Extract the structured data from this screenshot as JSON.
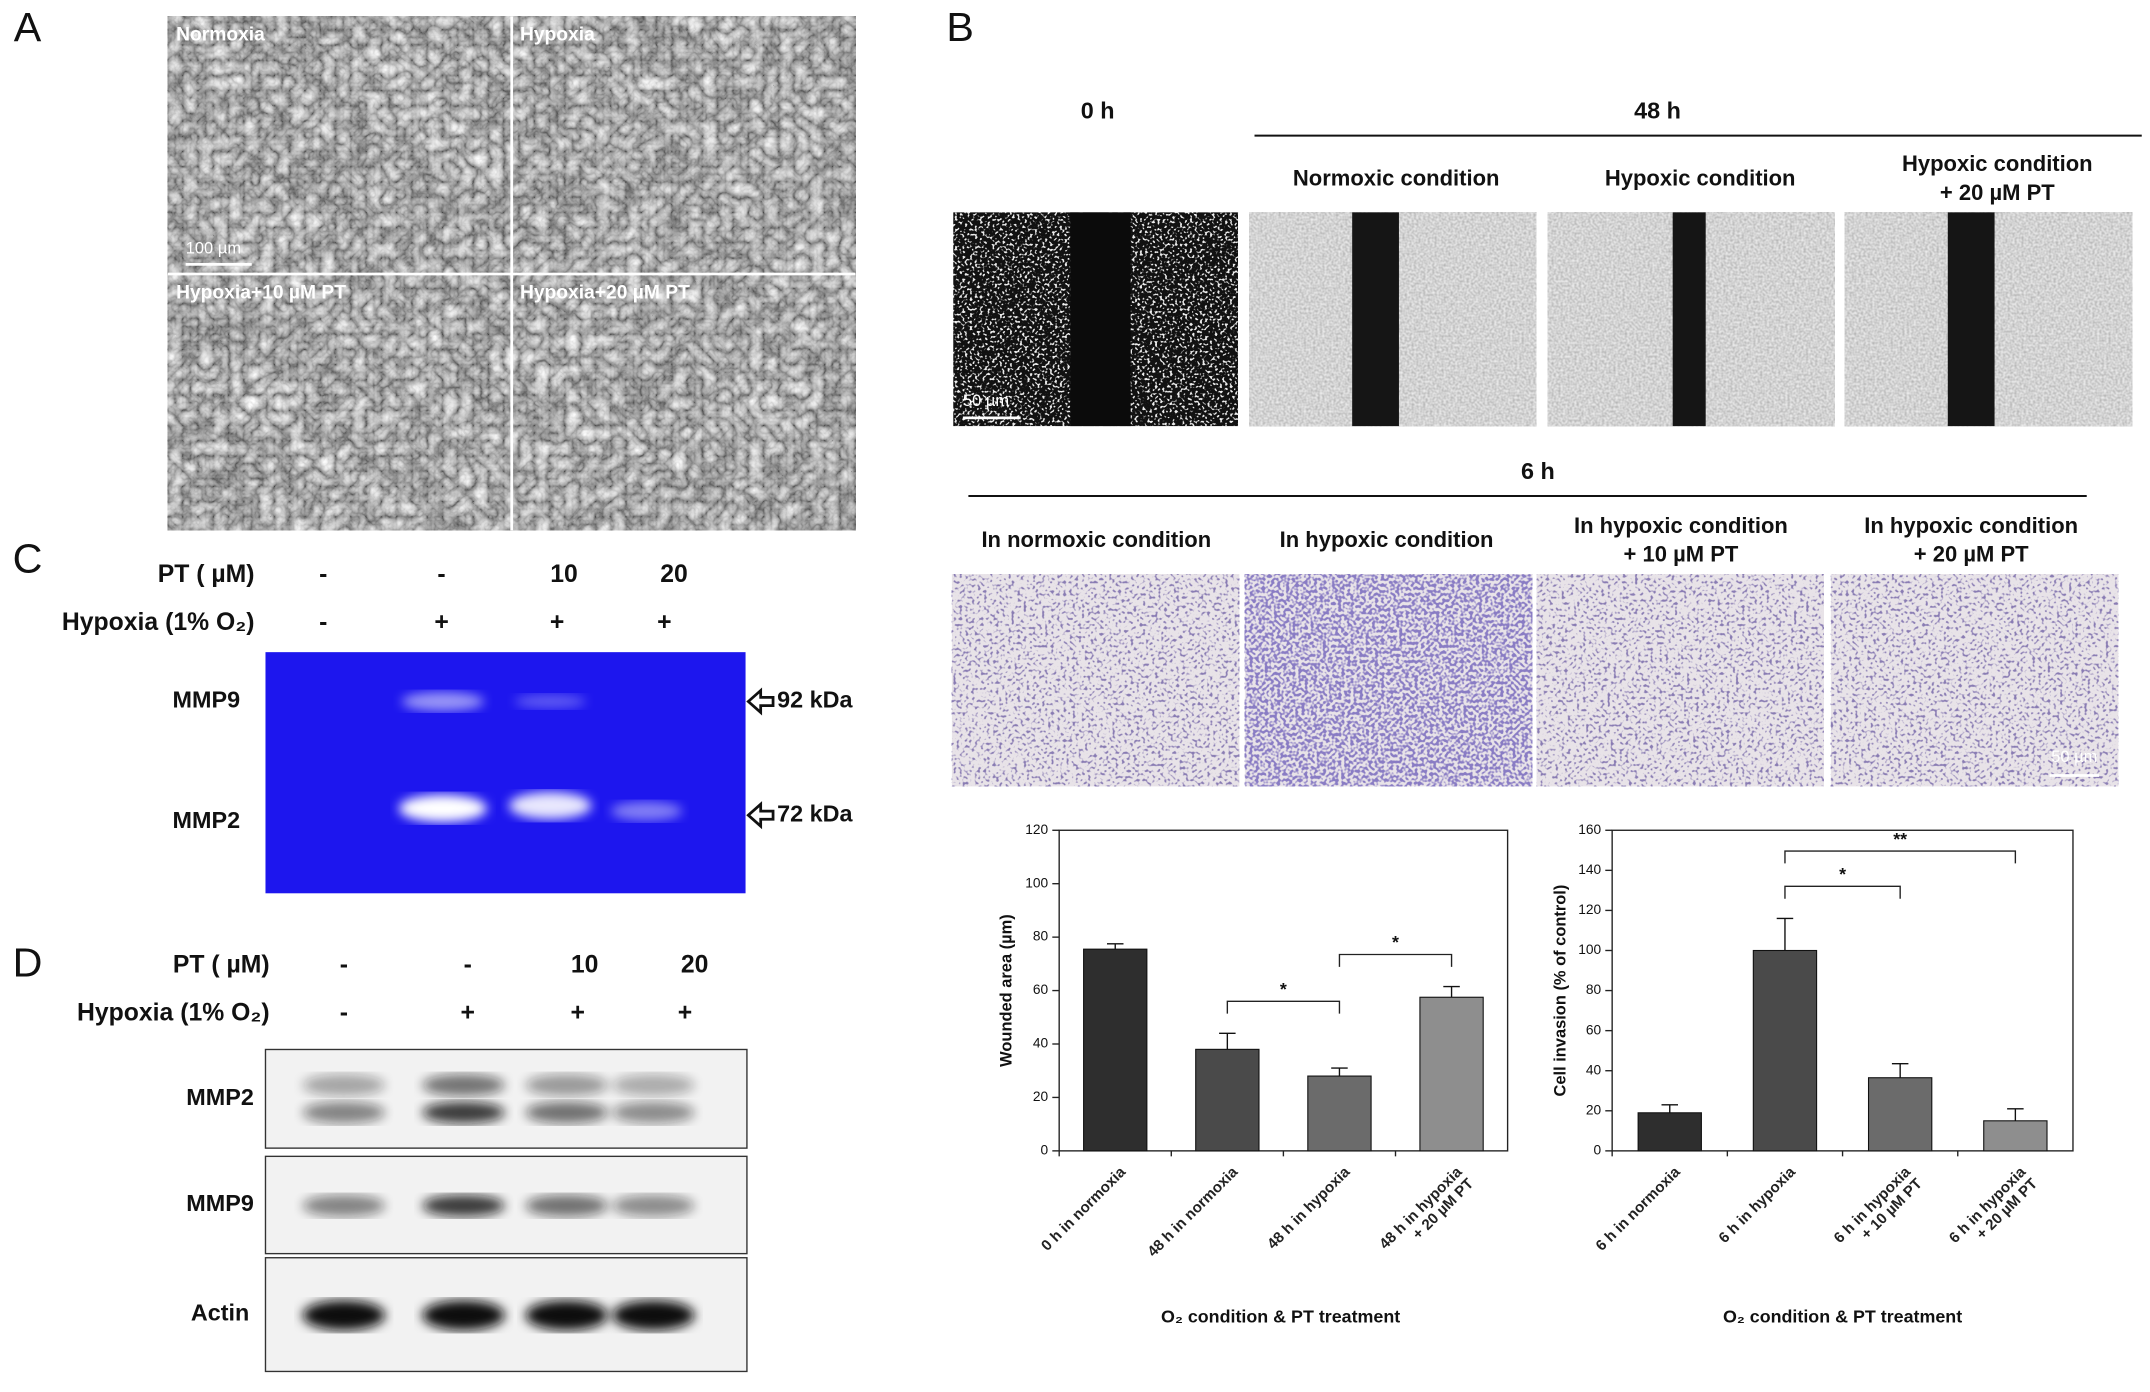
{
  "panels": {
    "A": {
      "label": "A",
      "images": [
        "Normoxia",
        "Hypoxia",
        "Hypoxia+10 µM PT",
        "Hypoxia+20 µM PT"
      ],
      "scale_bar": "100 µm"
    },
    "B": {
      "label": "B",
      "wound": {
        "time_0": "0 h",
        "time_48": "48 h",
        "conditions": [
          [
            "Normoxic condition"
          ],
          [
            "Hypoxic condition"
          ],
          [
            "Hypoxic condition",
            "+ 20 µM PT"
          ]
        ],
        "scale_bar": "50 µm"
      },
      "invasion": {
        "time": "6 h",
        "conditions": [
          [
            "In normoxic condition"
          ],
          [
            "In hypoxic condition"
          ],
          [
            "In hypoxic condition",
            "+ 10 µM PT"
          ],
          [
            "In hypoxic condition",
            "+ 20 µM PT"
          ]
        ],
        "scale_bar": "50 µm"
      }
    },
    "C": {
      "label": "C",
      "rows": [
        {
          "name": "PT ( µM)",
          "cells": [
            "-",
            "-",
            "10",
            "20"
          ]
        },
        {
          "name": "Hypoxia (1% O₂)",
          "cells": [
            "-",
            "+",
            "+",
            "+"
          ]
        }
      ],
      "bands": [
        "MMP9",
        "MMP2"
      ],
      "markers": [
        "92 kDa",
        "72 kDa"
      ]
    },
    "D": {
      "label": "D",
      "rows": [
        {
          "name": "PT ( µM)",
          "cells": [
            "-",
            "-",
            "10",
            "20"
          ]
        },
        {
          "name": "Hypoxia (1% O₂)",
          "cells": [
            "-",
            "+",
            "+",
            "+"
          ]
        }
      ],
      "blots": [
        "MMP2",
        "MMP9",
        "Actin"
      ]
    }
  },
  "chart_data": [
    {
      "type": "bar",
      "y_label": "Wounded area (µm)",
      "x_label": "O₂ condition & PT treatment",
      "categories": [
        [
          "0 h in normoxia"
        ],
        [
          "48 h in normoxia"
        ],
        [
          "48 h in hypoxia"
        ],
        [
          "48 h in hypoxia",
          "+ 20 µM PT"
        ]
      ],
      "values": [
        75.5,
        38,
        28,
        57.5
      ],
      "errors": [
        2,
        6,
        3,
        4
      ],
      "colors": [
        "#2e2e2e",
        "#4a4a4a",
        "#6b6b6b",
        "#8e8e8e"
      ],
      "ylim": [
        0,
        120
      ],
      "yticks": [
        0,
        20,
        40,
        60,
        80,
        100,
        120
      ],
      "annotations": [
        {
          "label": "*",
          "between": [
            1,
            2
          ]
        },
        {
          "label": "*",
          "between": [
            2,
            3
          ]
        }
      ]
    },
    {
      "type": "bar",
      "y_label": "Cell invasion (% of control)",
      "x_label": "O₂ condition & PT treatment",
      "categories": [
        [
          "6 h in normoxia"
        ],
        [
          "6 h in hypoxia"
        ],
        [
          "6 h in hypoxia",
          "+ 10 µM PT"
        ],
        [
          "6 h in hypoxia",
          "+ 20 µM PT"
        ]
      ],
      "values": [
        19,
        100,
        36.5,
        15
      ],
      "errors": [
        4,
        16,
        7,
        6
      ],
      "colors": [
        "#2e2e2e",
        "#4a4a4a",
        "#6b6b6b",
        "#8e8e8e"
      ],
      "ylim": [
        0,
        160
      ],
      "yticks": [
        0,
        20,
        40,
        60,
        80,
        100,
        120,
        140,
        160
      ],
      "annotations": [
        {
          "label": "*",
          "between": [
            1,
            2
          ]
        },
        {
          "label": "**",
          "between": [
            1,
            3
          ]
        }
      ]
    }
  ]
}
